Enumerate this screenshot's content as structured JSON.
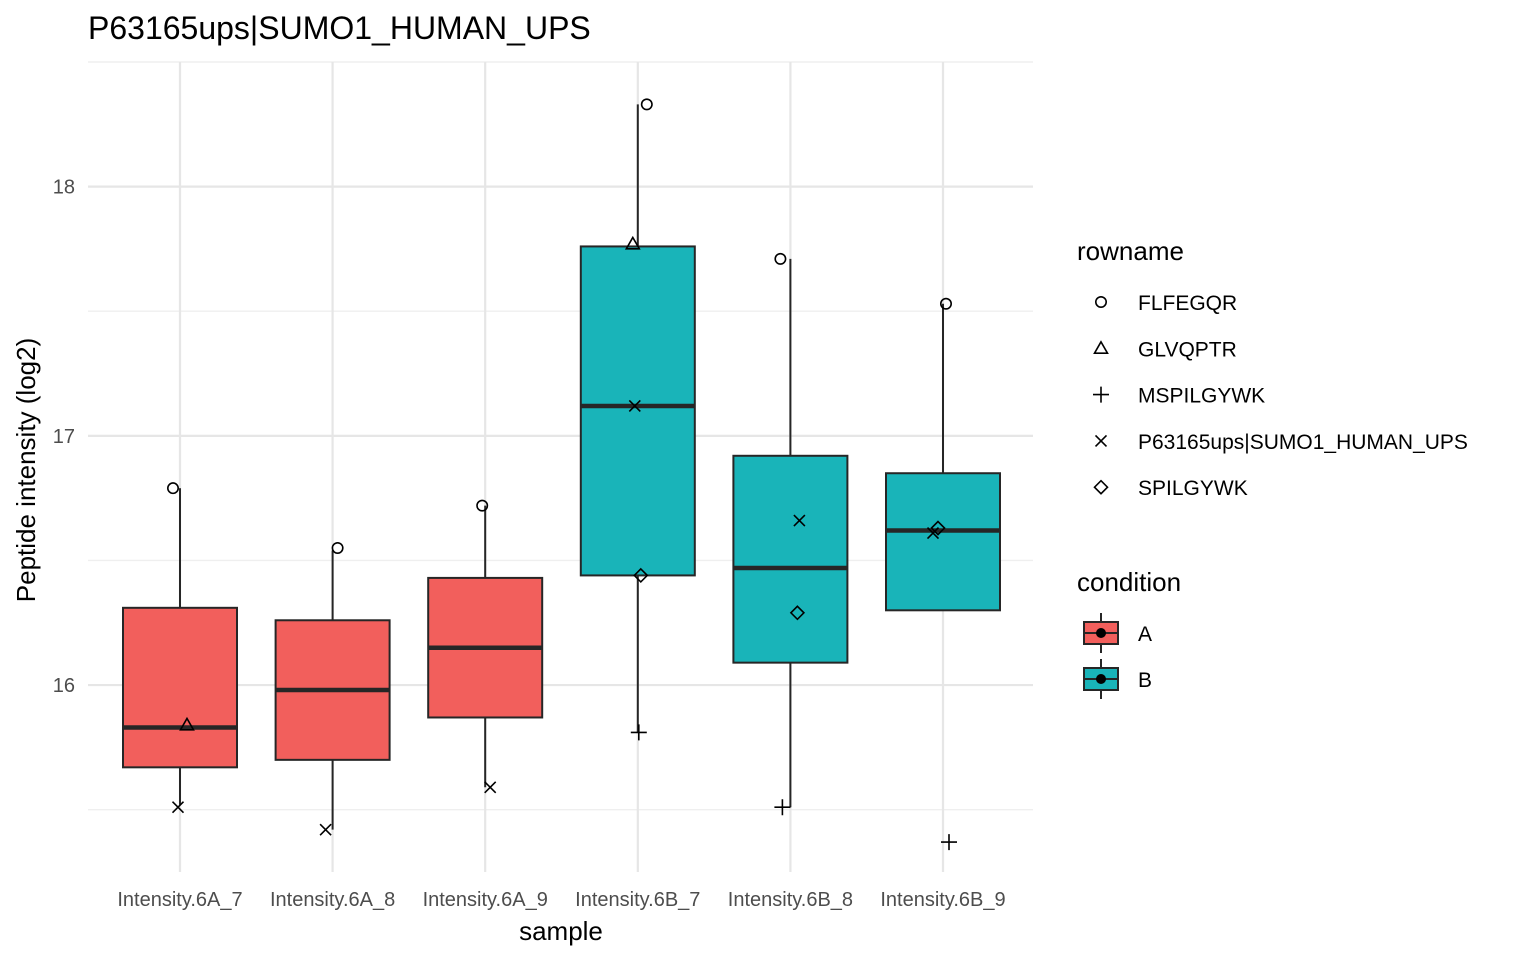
{
  "chart_data": {
    "type": "boxplot",
    "title": "P63165ups|SUMO1_HUMAN_UPS",
    "xlabel": "sample",
    "ylabel": "Peptide intensity (log2)",
    "ylim": [
      15.25,
      18.5
    ],
    "yticks": [
      16,
      17,
      18
    ],
    "ytick_labels": [
      "16",
      "17",
      "18"
    ],
    "grid": true,
    "legend_position": "right",
    "categories": [
      "Intensity.6A_7",
      "Intensity.6A_8",
      "Intensity.6A_9",
      "Intensity.6B_7",
      "Intensity.6B_8",
      "Intensity.6B_9"
    ],
    "conditions": [
      "A",
      "A",
      "A",
      "B",
      "B",
      "B"
    ],
    "colors": {
      "A": "#F25F5C",
      "B": "#19B4B9",
      "outline": "#262626",
      "grid": "#e6e6e6"
    },
    "boxes": [
      {
        "whisker_low": 15.52,
        "q1": 15.67,
        "median": 15.83,
        "q3": 16.31,
        "whisker_high": 16.79
      },
      {
        "whisker_low": 15.42,
        "q1": 15.7,
        "median": 15.98,
        "q3": 16.26,
        "whisker_high": 16.54
      },
      {
        "whisker_low": 15.59,
        "q1": 15.87,
        "median": 16.15,
        "q3": 16.43,
        "whisker_high": 16.72
      },
      {
        "whisker_low": 15.81,
        "q1": 16.44,
        "median": 17.12,
        "q3": 17.76,
        "whisker_high": 18.33
      },
      {
        "whisker_low": 15.51,
        "q1": 16.09,
        "median": 16.47,
        "q3": 16.92,
        "whisker_high": 17.71
      },
      {
        "whisker_low": 16.3,
        "q1": 16.3,
        "median": 16.62,
        "q3": 16.85,
        "whisker_high": 17.53
      }
    ],
    "shape_legend_title": "rowname",
    "fill_legend_title": "condition",
    "series": [
      {
        "name": "FLFEGQR",
        "shape": "circle",
        "points": [
          [
            "Intensity.6A_7",
            16.79
          ],
          [
            "Intensity.6A_8",
            16.55
          ],
          [
            "Intensity.6A_9",
            16.72
          ],
          [
            "Intensity.6B_7",
            18.33
          ],
          [
            "Intensity.6B_8",
            17.71
          ],
          [
            "Intensity.6B_9",
            17.53
          ]
        ]
      },
      {
        "name": "GLVQPTR",
        "shape": "triangle",
        "points": [
          [
            "Intensity.6A_7",
            15.84
          ],
          [
            "Intensity.6B_7",
            17.77
          ]
        ]
      },
      {
        "name": "MSPILGYWK",
        "shape": "plus",
        "points": [
          [
            "Intensity.6B_7",
            15.81
          ],
          [
            "Intensity.6B_8",
            15.51
          ],
          [
            "Intensity.6B_9",
            15.37
          ]
        ]
      },
      {
        "name": "P63165ups|SUMO1_HUMAN_UPS",
        "shape": "cross",
        "points": [
          [
            "Intensity.6A_7",
            15.51
          ],
          [
            "Intensity.6A_8",
            15.42
          ],
          [
            "Intensity.6A_9",
            15.59
          ],
          [
            "Intensity.6B_7",
            17.12
          ],
          [
            "Intensity.6B_8",
            16.66
          ],
          [
            "Intensity.6B_9",
            16.61
          ]
        ]
      },
      {
        "name": "SPILGYWK",
        "shape": "diamond",
        "points": [
          [
            "Intensity.6B_7",
            16.44
          ],
          [
            "Intensity.6B_8",
            16.29
          ],
          [
            "Intensity.6B_9",
            16.63
          ]
        ]
      }
    ]
  }
}
